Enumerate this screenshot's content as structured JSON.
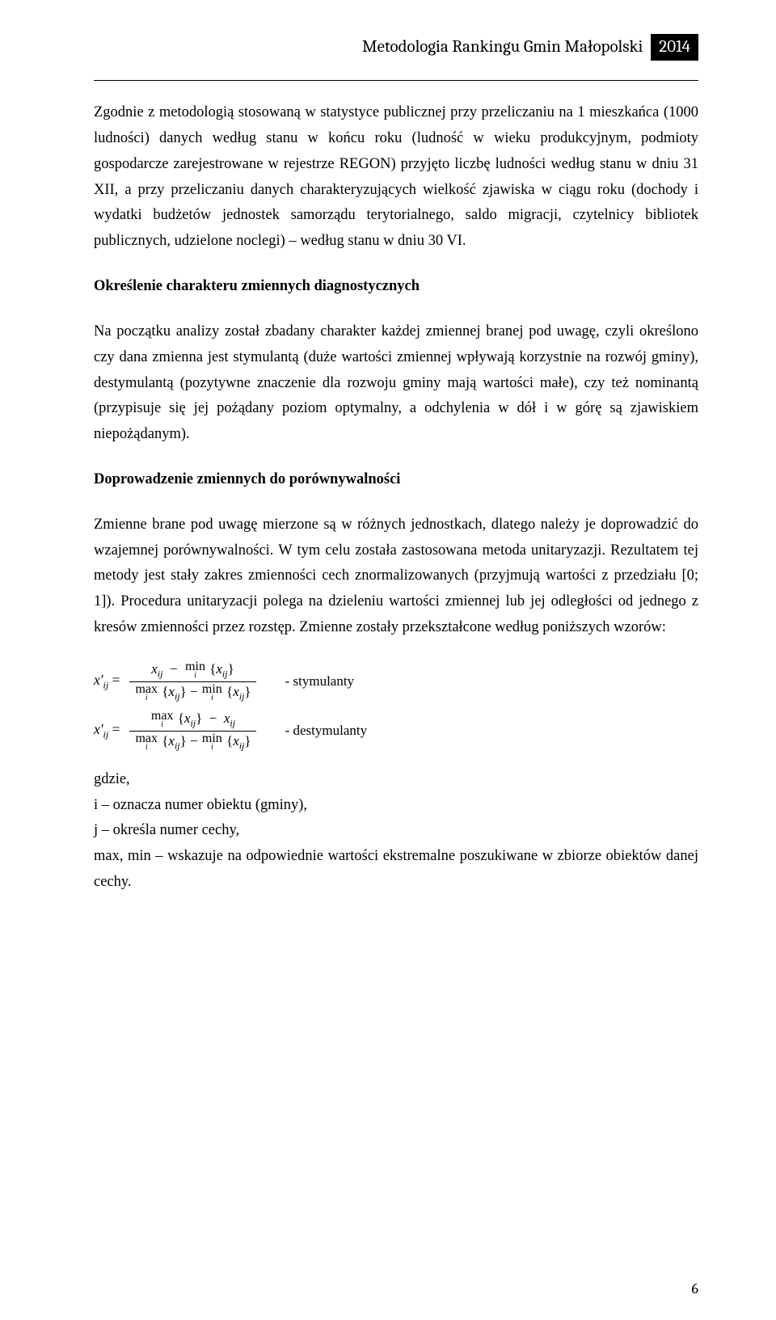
{
  "header": {
    "title": "Metodologia Rankingu Gmin Małopolski",
    "year": "2014"
  },
  "paragraphs": {
    "p1": "Zgodnie z metodologią stosowaną w statystyce publicznej przy przeliczaniu na 1 mieszkańca (1000 ludności) danych według stanu w końcu roku (ludność w wieku produkcyjnym, podmioty gospodarcze zarejestrowane w rejestrze REGON) przyjęto liczbę ludności według stanu w dniu 31 XII, a przy przeliczaniu danych charakteryzujących wielkość zjawiska w ciągu roku (dochody i wydatki budżetów jednostek samorządu terytorialnego, saldo migracji, czytelnicy bibliotek publicznych, udzielone noclegi) – według stanu w dniu 30 VI.",
    "h2": "Określenie charakteru zmiennych diagnostycznych",
    "p2": "Na początku analizy został zbadany charakter każdej zmiennej branej pod uwagę, czyli określono czy dana zmienna jest stymulantą (duże wartości zmiennej wpływają korzystnie na rozwój gminy), destymulantą (pozytywne znaczenie dla rozwoju gminy mają wartości małe), czy też nominantą (przypisuje się jej pożądany poziom optymalny, a odchylenia w dół i w górę są zjawiskiem niepożądanym).",
    "h3": "Doprowadzenie zmiennych do porównywalności",
    "p3": "Zmienne brane pod uwagę mierzone są w różnych jednostkach, dlatego należy je doprowadzić do wzajemnej porównywalności. W tym celu została zastosowana metoda unitaryzazji. Rezultatem tej metody jest stały zakres zmienności cech znormalizowanych (przyjmują wartości z przedziału [0; 1]). Procedura unitaryzacji polega na dzieleniu wartości zmiennej lub jej odległości od jednego z kresów zmienności przez rozstęp. Zmienne zostały przekształcone według poniższych wzorów:"
  },
  "formulas": {
    "lhs": "x'",
    "ij": "ij",
    "eq": "=",
    "min": "min",
    "max": "max",
    "isub": "i",
    "xij": "x",
    "label1": "- stymulanty",
    "label2": "- destymulanty"
  },
  "where": {
    "l1": "gdzie,",
    "l2": "i – oznacza numer obiektu (gminy),",
    "l3": "j – określa numer cechy,",
    "l4": "max, min – wskazuje na odpowiednie wartości ekstremalne poszukiwane w zbiorze obiektów danej cechy."
  },
  "page_number": "6"
}
